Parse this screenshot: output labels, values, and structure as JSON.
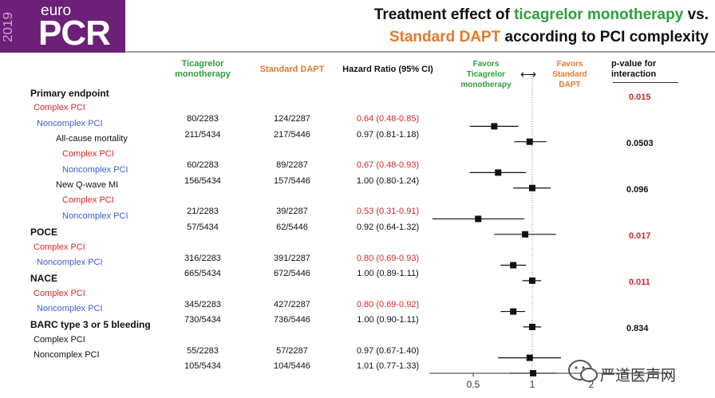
{
  "logo": {
    "brand": "euro",
    "name": "PCR",
    "year": "2019"
  },
  "title": {
    "line1_prefix": "Treatment effect of ",
    "line1_highlight": "ticagrelor monotherapy",
    "line1_suffix": " vs.",
    "line2_highlight": "Standard DAPT",
    "line2_suffix": " according to PCI complexity"
  },
  "columns": {
    "ticagrelor": "Ticagrelor monotherapy",
    "dapt": "Standard DAPT",
    "hr": "Hazard Ratio (95% CI)",
    "favors_left": "Favors Ticagrelor monotherapy",
    "favors_right": "Favors Standard DAPT",
    "pvalue": "p-value for interaction"
  },
  "colors": {
    "brand": "#6d2077",
    "ticagrelor": "#2e9e3c",
    "dapt": "#e8782a",
    "complex": "#d62728",
    "noncomplex": "#3a5fcd"
  },
  "chart_data": {
    "type": "forest",
    "x_scale": "log",
    "xlim": [
      0.3,
      10
    ],
    "x_ticks": [
      "0.5",
      "1",
      "2",
      "10"
    ],
    "reference_line": 1,
    "rows": [
      {
        "label": "Primary endpoint",
        "kind": "header",
        "pvalue": "0.015"
      },
      {
        "label": "Complex PCI",
        "kind": "complex",
        "ticagrelor": "80/2283",
        "dapt": "124/2287",
        "hr_text": "0.64 (0.48-0.85)",
        "hr": 0.64,
        "lo": 0.48,
        "hi": 0.85
      },
      {
        "label": "Noncomplex PCI",
        "kind": "noncomplex",
        "ticagrelor": "211/5434",
        "dapt": "217/5446",
        "hr_text": "0.97 (0.81-1.18)",
        "hr": 0.97,
        "lo": 0.81,
        "hi": 1.18
      },
      {
        "label": "All-cause mortality",
        "kind": "subheader",
        "pvalue": "0.0503"
      },
      {
        "label": "Complex PCI",
        "kind": "complex",
        "ticagrelor": "60/2283",
        "dapt": "89/2287",
        "hr_text": "0.67 (0.48-0.93)",
        "hr": 0.67,
        "lo": 0.48,
        "hi": 0.93
      },
      {
        "label": "Noncomplex PCI",
        "kind": "noncomplex",
        "ticagrelor": "156/5434",
        "dapt": "157/5446",
        "hr_text": "1.00 (0.80-1.24)",
        "hr": 1.0,
        "lo": 0.8,
        "hi": 1.24
      },
      {
        "label": "New Q-wave MI",
        "kind": "subheader",
        "pvalue": "0.096"
      },
      {
        "label": "Complex PCI",
        "kind": "complex",
        "ticagrelor": "21/2283",
        "dapt": "39/2287",
        "hr_text": "0.53 (0.31-0.91)",
        "hr": 0.53,
        "lo": 0.31,
        "hi": 0.91
      },
      {
        "label": "Noncomplex PCI",
        "kind": "noncomplex",
        "ticagrelor": "57/5434",
        "dapt": "62/5446",
        "hr_text": "0.92 (0.64-1.32)",
        "hr": 0.92,
        "lo": 0.64,
        "hi": 1.32
      },
      {
        "label": "POCE",
        "kind": "header",
        "pvalue": "0.017"
      },
      {
        "label": "Complex PCI",
        "kind": "complex",
        "ticagrelor": "316/2283",
        "dapt": "391/2287",
        "hr_text": "0.80 (0.69-0.93)",
        "hr": 0.8,
        "lo": 0.69,
        "hi": 0.93
      },
      {
        "label": "Noncomplex PCI",
        "kind": "noncomplex",
        "ticagrelor": "665/5434",
        "dapt": "672/5446",
        "hr_text": "1.00 (0.89-1.11)",
        "hr": 1.0,
        "lo": 0.89,
        "hi": 1.11
      },
      {
        "label": "NACE",
        "kind": "header",
        "pvalue": "0.011"
      },
      {
        "label": "Complex PCI",
        "kind": "complex",
        "ticagrelor": "345/2283",
        "dapt": "427/2287",
        "hr_text": "0.80 (0.69-0.92)",
        "hr": 0.8,
        "lo": 0.69,
        "hi": 0.92
      },
      {
        "label": "Noncomplex  PCI",
        "kind": "noncomplex",
        "ticagrelor": "730/5434",
        "dapt": "736/5446",
        "hr_text": "1.00 (0.90-1.11)",
        "hr": 1.0,
        "lo": 0.9,
        "hi": 1.11
      },
      {
        "label": "BARC type 3 or 5 bleeding",
        "kind": "header",
        "pvalue": "0.834"
      },
      {
        "label": "Complex PCI",
        "kind": "plain",
        "ticagrelor": "55/2283",
        "dapt": "57/2287",
        "hr_text": "0.97 (0.67-1.40)",
        "hr": 0.97,
        "lo": 0.67,
        "hi": 1.4
      },
      {
        "label": "Noncomplex PCI",
        "kind": "plain",
        "ticagrelor": "105/5434",
        "dapt": "104/5446",
        "hr_text": "1.01 (0.77-1.33)",
        "hr": 1.01,
        "lo": 0.77,
        "hi": 1.33
      }
    ]
  },
  "watermark": {
    "text": "严道医声网"
  }
}
